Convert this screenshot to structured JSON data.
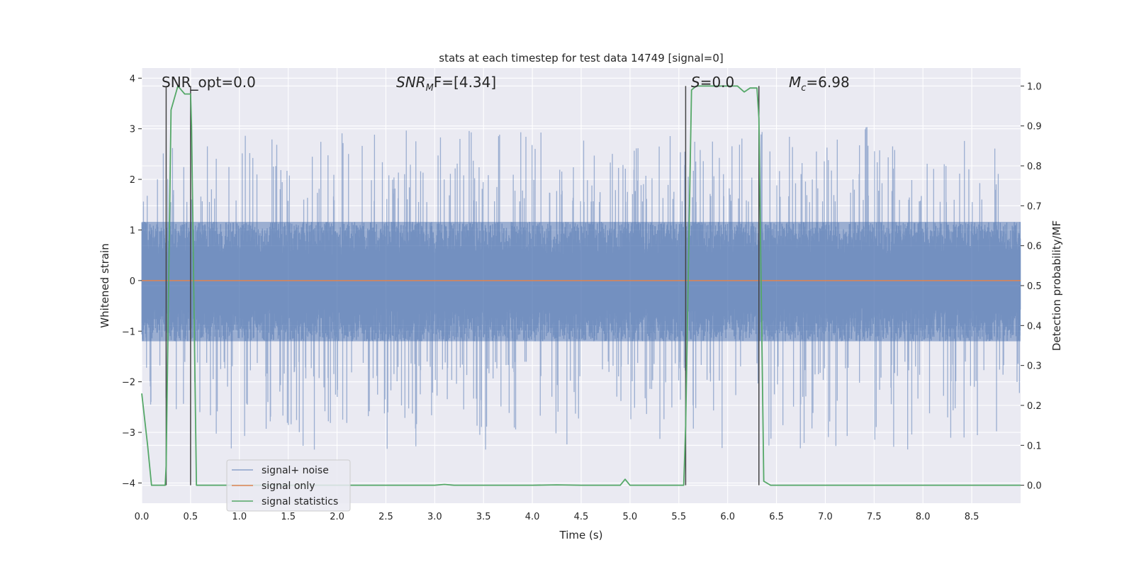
{
  "chart_data": {
    "type": "line",
    "title": "stats at each timestep for test data 14749 [signal=0]",
    "xlabel": "Time (s)",
    "ylabel_left": "Whitened strain",
    "ylabel_right": "Detection probability/MF",
    "xlim": [
      0.0,
      9.0
    ],
    "ylim_left": [
      -4.4,
      4.2
    ],
    "ylim_right": [
      -0.045,
      1.045
    ],
    "x_ticks": [
      "0.0",
      "0.5",
      "1.0",
      "1.5",
      "2.0",
      "2.5",
      "3.0",
      "3.5",
      "4.0",
      "4.5",
      "5.0",
      "5.5",
      "6.0",
      "6.5",
      "7.0",
      "7.5",
      "8.0",
      "8.5"
    ],
    "y_ticks_left": [
      "−4",
      "−3",
      "−2",
      "−1",
      "0",
      "1",
      "2",
      "3",
      "4"
    ],
    "y_ticks_right": [
      "0.0",
      "0.1",
      "0.2",
      "0.3",
      "0.4",
      "0.5",
      "0.6",
      "0.7",
      "0.8",
      "0.9",
      "1.0"
    ],
    "grid": true,
    "legend_location": "lower-left",
    "annotations": {
      "snr_opt": "SNR_opt=0.0",
      "snr_mf_main": "SNR",
      "snr_mf_sub": "M",
      "snr_mf_rest": "F=[4.34]",
      "s_main": "S",
      "s_rest": "=0.0",
      "mc_main": "M",
      "mc_sub": "c",
      "mc_rest": "=6.98"
    },
    "vertical_lines_x": [
      0.25,
      0.5,
      5.57,
      6.32
    ],
    "series": [
      {
        "name": "signal+ noise",
        "axis": "left",
        "color": "#4c72b0",
        "style": "noise band, approx. spread ±1.5 with peaks to ±3.3",
        "stats": {
          "core_min": -1.5,
          "core_max": 1.45,
          "peak_max": 3.1,
          "peak_min": -3.45
        }
      },
      {
        "name": "signal only",
        "axis": "left",
        "color": "#dd8452",
        "x": [
          0.0,
          9.0
        ],
        "y": [
          0.0,
          0.0
        ]
      },
      {
        "name": "signal statistics",
        "axis": "right",
        "color": "#55a868",
        "x": [
          0.0,
          0.06,
          0.1,
          0.18,
          0.24,
          0.25,
          0.3,
          0.37,
          0.44,
          0.5,
          0.51,
          0.56,
          0.6,
          0.7,
          1.0,
          2.0,
          3.0,
          3.1,
          3.2,
          4.0,
          4.25,
          4.5,
          4.9,
          4.95,
          5.0,
          5.1,
          5.55,
          5.57,
          5.63,
          5.68,
          6.0,
          6.1,
          6.17,
          6.23,
          6.3,
          6.32,
          6.37,
          6.44,
          6.5,
          7.0,
          8.0,
          9.0
        ],
        "y": [
          0.23,
          0.1,
          0.0,
          0.0,
          0.0,
          0.05,
          0.94,
          1.0,
          0.98,
          0.98,
          0.9,
          0.0,
          0.0,
          0.0,
          0.0,
          0.0,
          0.0,
          0.002,
          0.0,
          0.0,
          0.001,
          0.0,
          0.0,
          0.015,
          0.0,
          0.0,
          0.0,
          0.15,
          0.99,
          1.0,
          1.0,
          1.0,
          0.985,
          0.995,
          0.995,
          0.92,
          0.01,
          0.0,
          0.0,
          0.0,
          0.0,
          0.0
        ]
      }
    ]
  },
  "legend": {
    "items": [
      {
        "label": "signal+ noise",
        "color": "#4c72b0"
      },
      {
        "label": "signal only",
        "color": "#dd8452"
      },
      {
        "label": "signal statistics",
        "color": "#55a868"
      }
    ]
  }
}
